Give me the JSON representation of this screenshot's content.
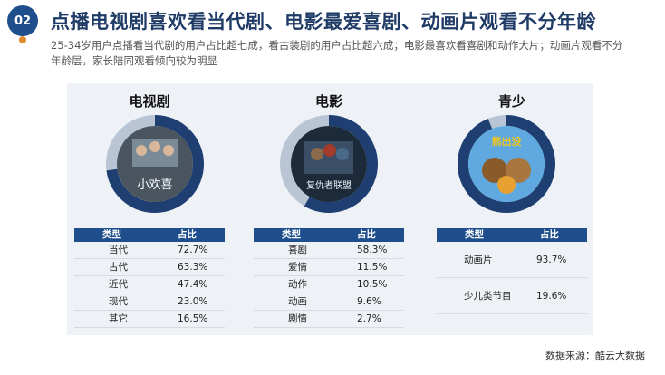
{
  "header": {
    "badge": "02",
    "title": "点播电视剧喜欢看当代剧、电影最爱喜剧、动画片观看不分年龄",
    "subtitle": "25-34岁用户点播看当代剧的用户占比超七成，看古装剧的用户占比超六成；电影最喜欢看喜剧和动作大片；动画片观看不分年龄层，家长陪同观看倾向较为明显"
  },
  "colors": {
    "navy": "#1f4e8c",
    "accent": "#e08a2c",
    "panel": "#eef1f5"
  },
  "table_headers": {
    "type": "类型",
    "share": "占比"
  },
  "cards": [
    {
      "title": "电视剧",
      "poster_text": "小欢喜",
      "donut_fraction": 0.727,
      "rows": [
        {
          "cat": "当代",
          "val": "72.7%"
        },
        {
          "cat": "古代",
          "val": "63.3%"
        },
        {
          "cat": "近代",
          "val": "47.4%"
        },
        {
          "cat": "现代",
          "val": "23.0%"
        },
        {
          "cat": "其它",
          "val": "16.5%"
        }
      ]
    },
    {
      "title": "电影",
      "poster_text": "复仇者联盟",
      "donut_fraction": 0.583,
      "rows": [
        {
          "cat": "喜剧",
          "val": "58.3%"
        },
        {
          "cat": "爱情",
          "val": "11.5%"
        },
        {
          "cat": "动作",
          "val": "10.5%"
        },
        {
          "cat": "动画",
          "val": "9.6%"
        },
        {
          "cat": "剧情",
          "val": "2.7%"
        }
      ]
    },
    {
      "title": "青少",
      "poster_text": "熊出没",
      "donut_fraction": 0.937,
      "rows": [
        {
          "cat": "动画片",
          "val": "93.7%"
        },
        {
          "cat": "少儿类节目",
          "val": "19.6%"
        }
      ]
    }
  ],
  "source": "数据来源：酷云大数据"
}
